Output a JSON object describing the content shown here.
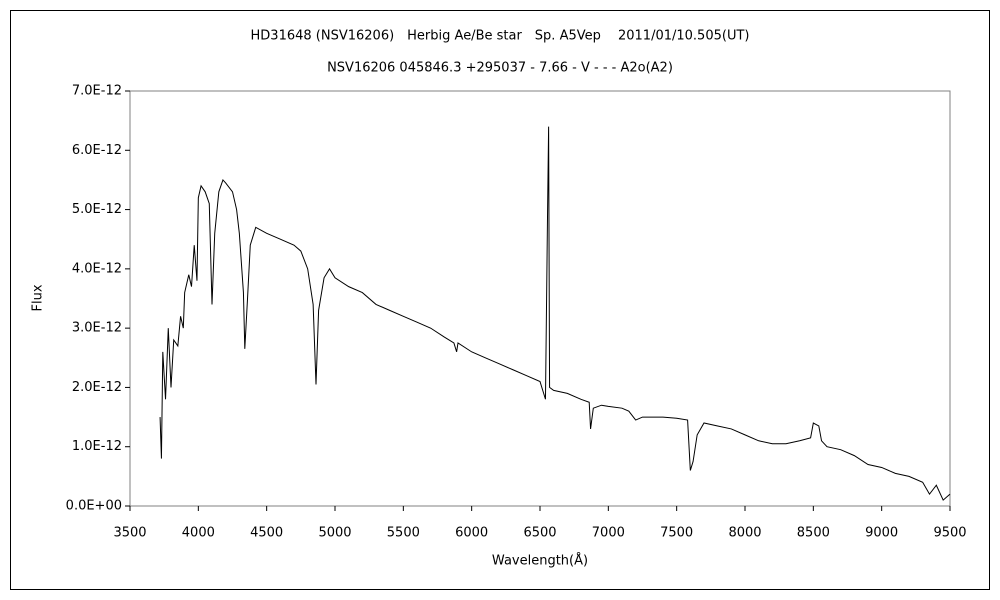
{
  "chart_data": {
    "type": "line",
    "title": "HD31648 (NSV16206)　Herbig Ae/Be star　Sp. A5Vep　 2011/01/10.505(UT)",
    "subtitle": "NSV16206 045846.3 +295037 - 7.66 - V - - - A2o(A2)",
    "xlabel": "Wavelength(Å)",
    "ylabel": "Flux",
    "color": "#000000",
    "grid": false,
    "xlim": [
      3500,
      9500
    ],
    "xticks": [
      3500,
      4000,
      4500,
      5000,
      5500,
      6000,
      6500,
      7000,
      7500,
      8000,
      8500,
      9000,
      9500
    ],
    "ylim": [
      0,
      7e-12
    ],
    "yticks": [
      {
        "value": 0,
        "label": "0.0E+00"
      },
      {
        "value": 1e-12,
        "label": "1.0E-12"
      },
      {
        "value": 2e-12,
        "label": "2.0E-12"
      },
      {
        "value": 3e-12,
        "label": "3.0E-12"
      },
      {
        "value": 4e-12,
        "label": "4.0E-12"
      },
      {
        "value": 5e-12,
        "label": "5.0E-12"
      },
      {
        "value": 6e-12,
        "label": "6.0E-12"
      },
      {
        "value": 7e-12,
        "label": "7.0E-12"
      }
    ],
    "x": [
      3720,
      3730,
      3740,
      3760,
      3780,
      3800,
      3820,
      3850,
      3870,
      3890,
      3900,
      3930,
      3950,
      3970,
      3990,
      4000,
      4020,
      4050,
      4080,
      4100,
      4120,
      4150,
      4180,
      4200,
      4250,
      4280,
      4300,
      4330,
      4340,
      4360,
      4380,
      4420,
      4500,
      4600,
      4700,
      4750,
      4800,
      4840,
      4861,
      4880,
      4920,
      4960,
      5000,
      5100,
      5200,
      5300,
      5400,
      5500,
      5600,
      5700,
      5800,
      5870,
      5890,
      5900,
      6000,
      6100,
      6200,
      6300,
      6400,
      6500,
      6540,
      6555,
      6563,
      6570,
      6600,
      6700,
      6800,
      6860,
      6870,
      6890,
      6950,
      7000,
      7100,
      7150,
      7200,
      7250,
      7300,
      7400,
      7500,
      7580,
      7600,
      7620,
      7650,
      7700,
      7800,
      7900,
      8000,
      8100,
      8200,
      8300,
      8400,
      8480,
      8500,
      8540,
      8560,
      8600,
      8700,
      8800,
      8900,
      9000,
      9100,
      9200,
      9300,
      9350,
      9400,
      9450,
      9500
    ],
    "values": [
      1.5e-12,
      8e-13,
      2.6e-12,
      1.8e-12,
      3e-12,
      2e-12,
      2.8e-12,
      2.7e-12,
      3.2e-12,
      3e-12,
      3.6e-12,
      3.9e-12,
      3.7e-12,
      4.4e-12,
      3.8e-12,
      5.2e-12,
      5.4e-12,
      5.3e-12,
      5.1e-12,
      3.4e-12,
      4.6e-12,
      5.3e-12,
      5.5e-12,
      5.45e-12,
      5.3e-12,
      5e-12,
      4.6e-12,
      3.6e-12,
      2.65e-12,
      3.5e-12,
      4.4e-12,
      4.7e-12,
      4.6e-12,
      4.5e-12,
      4.4e-12,
      4.3e-12,
      4e-12,
      3.4e-12,
      2.05e-12,
      3.3e-12,
      3.85e-12,
      4e-12,
      3.85e-12,
      3.7e-12,
      3.6e-12,
      3.4e-12,
      3.3e-12,
      3.2e-12,
      3.1e-12,
      3e-12,
      2.85e-12,
      2.75e-12,
      2.6e-12,
      2.75e-12,
      2.6e-12,
      2.5e-12,
      2.4e-12,
      2.3e-12,
      2.2e-12,
      2.1e-12,
      1.8e-12,
      4.9e-12,
      6.4e-12,
      2e-12,
      1.95e-12,
      1.9e-12,
      1.8e-12,
      1.75e-12,
      1.3e-12,
      1.65e-12,
      1.7e-12,
      1.68e-12,
      1.65e-12,
      1.6e-12,
      1.45e-12,
      1.5e-12,
      1.5e-12,
      1.5e-12,
      1.48e-12,
      1.45e-12,
      6e-13,
      7.5e-13,
      1.2e-12,
      1.4e-12,
      1.35e-12,
      1.3e-12,
      1.2e-12,
      1.1e-12,
      1.05e-12,
      1.05e-12,
      1.1e-12,
      1.15e-12,
      1.4e-12,
      1.35e-12,
      1.1e-12,
      1e-12,
      9.5e-13,
      8.5e-13,
      7e-13,
      6.5e-13,
      5.5e-13,
      5e-13,
      4e-13,
      2e-13,
      3.5e-13,
      1e-13,
      2e-13
    ]
  }
}
